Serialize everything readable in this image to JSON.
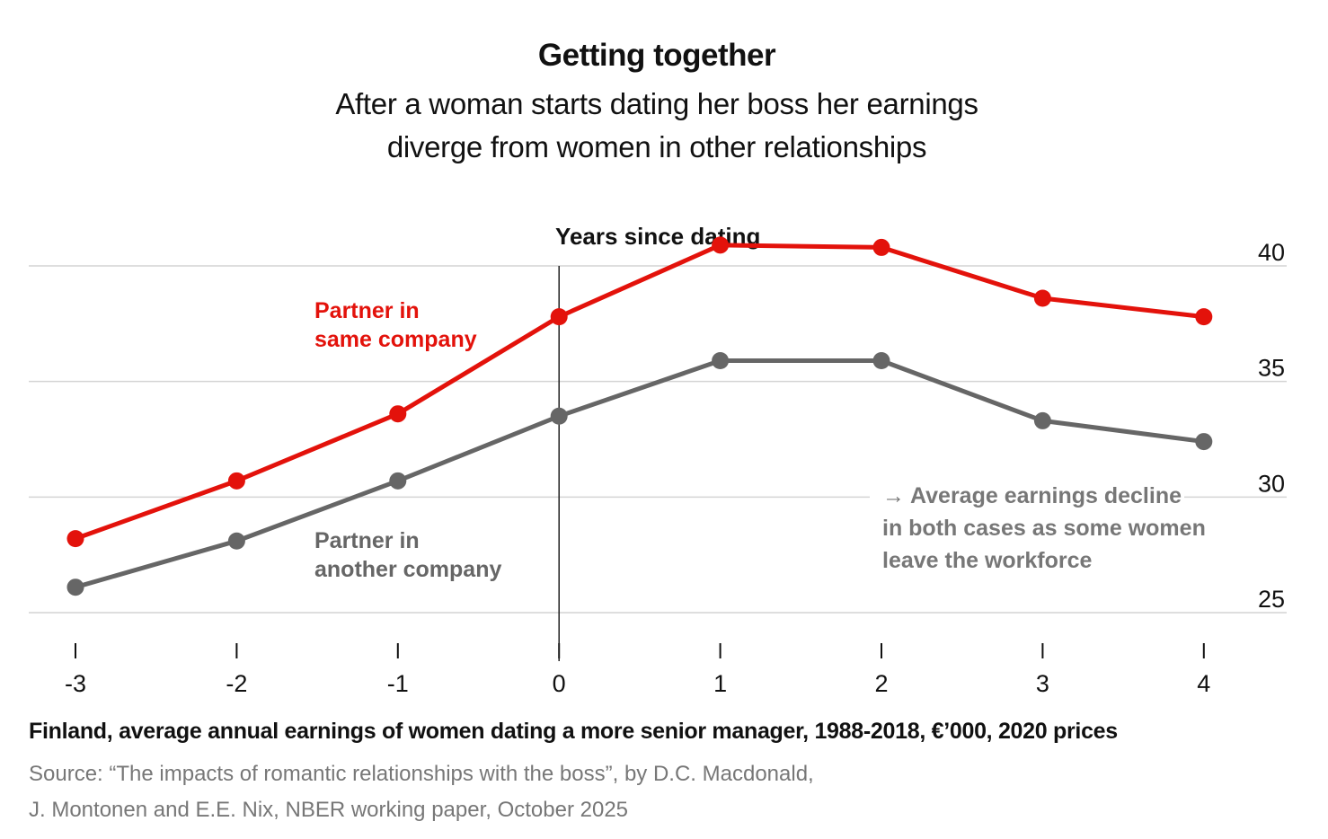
{
  "title": "Getting together",
  "subtitle_lines": [
    "After a woman starts dating her boss her earnings",
    "diverge from women in other relationships"
  ],
  "footer": {
    "description": "Finland, average annual earnings of women dating a more senior manager, 1988-2018, €’000, 2020 prices",
    "source_lines": [
      "Source: “The impacts of romantic relationships with the boss”, by D.C. Macdonald,",
      "J. Montonen and E.E. Nix, NBER working paper, October 2025"
    ]
  },
  "colors": {
    "same_company": "#e3120b",
    "another_company": "#666666",
    "grid": "#d4d4d4",
    "text": "#111111",
    "muted": "#777777"
  },
  "chart_data": {
    "type": "line",
    "xlabel": "Years since dating",
    "ylabel": "",
    "x": [
      -3,
      -2,
      -1,
      0,
      1,
      2,
      3,
      4
    ],
    "xlim": [
      -3,
      4
    ],
    "ylim": [
      25,
      40
    ],
    "yticks": [
      25,
      30,
      35,
      40
    ],
    "y_axis_side": "right",
    "grid": true,
    "series": [
      {
        "name": "Partner in same company",
        "label_lines": [
          "Partner in",
          "same company"
        ],
        "color": "#e3120b",
        "values": [
          28.2,
          30.7,
          33.6,
          37.8,
          40.9,
          40.8,
          38.6,
          37.8
        ]
      },
      {
        "name": "Partner in another company",
        "label_lines": [
          "Partner in",
          "another company"
        ],
        "color": "#666666",
        "values": [
          26.1,
          28.1,
          30.7,
          33.5,
          35.9,
          35.9,
          33.3,
          32.4
        ]
      }
    ],
    "annotation_lines": [
      "→ Average earnings decline",
      "in both cases as some women",
      "leave the workforce"
    ]
  }
}
